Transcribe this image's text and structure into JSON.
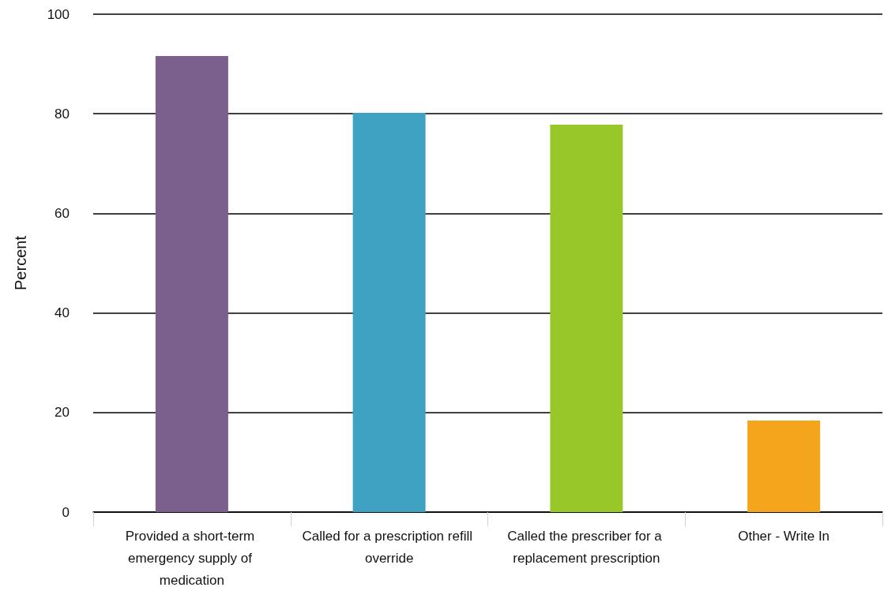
{
  "chart_data": {
    "type": "bar",
    "ylabel": "Percent",
    "categories": [
      "Provided a short-term emergency supply of medication",
      "Called for a prescription refill override",
      "Called the prescriber for a replacement prescription",
      "Other - Write In"
    ],
    "values": [
      91.6,
      80.2,
      77.8,
      18.4
    ],
    "colors": [
      "#7b5f8c",
      "#3fa2c2",
      "#97c728",
      "#f4a51c"
    ],
    "ylim": [
      0,
      100
    ],
    "yticks": [
      0,
      20,
      40,
      60,
      80,
      100
    ],
    "grid": "y"
  }
}
